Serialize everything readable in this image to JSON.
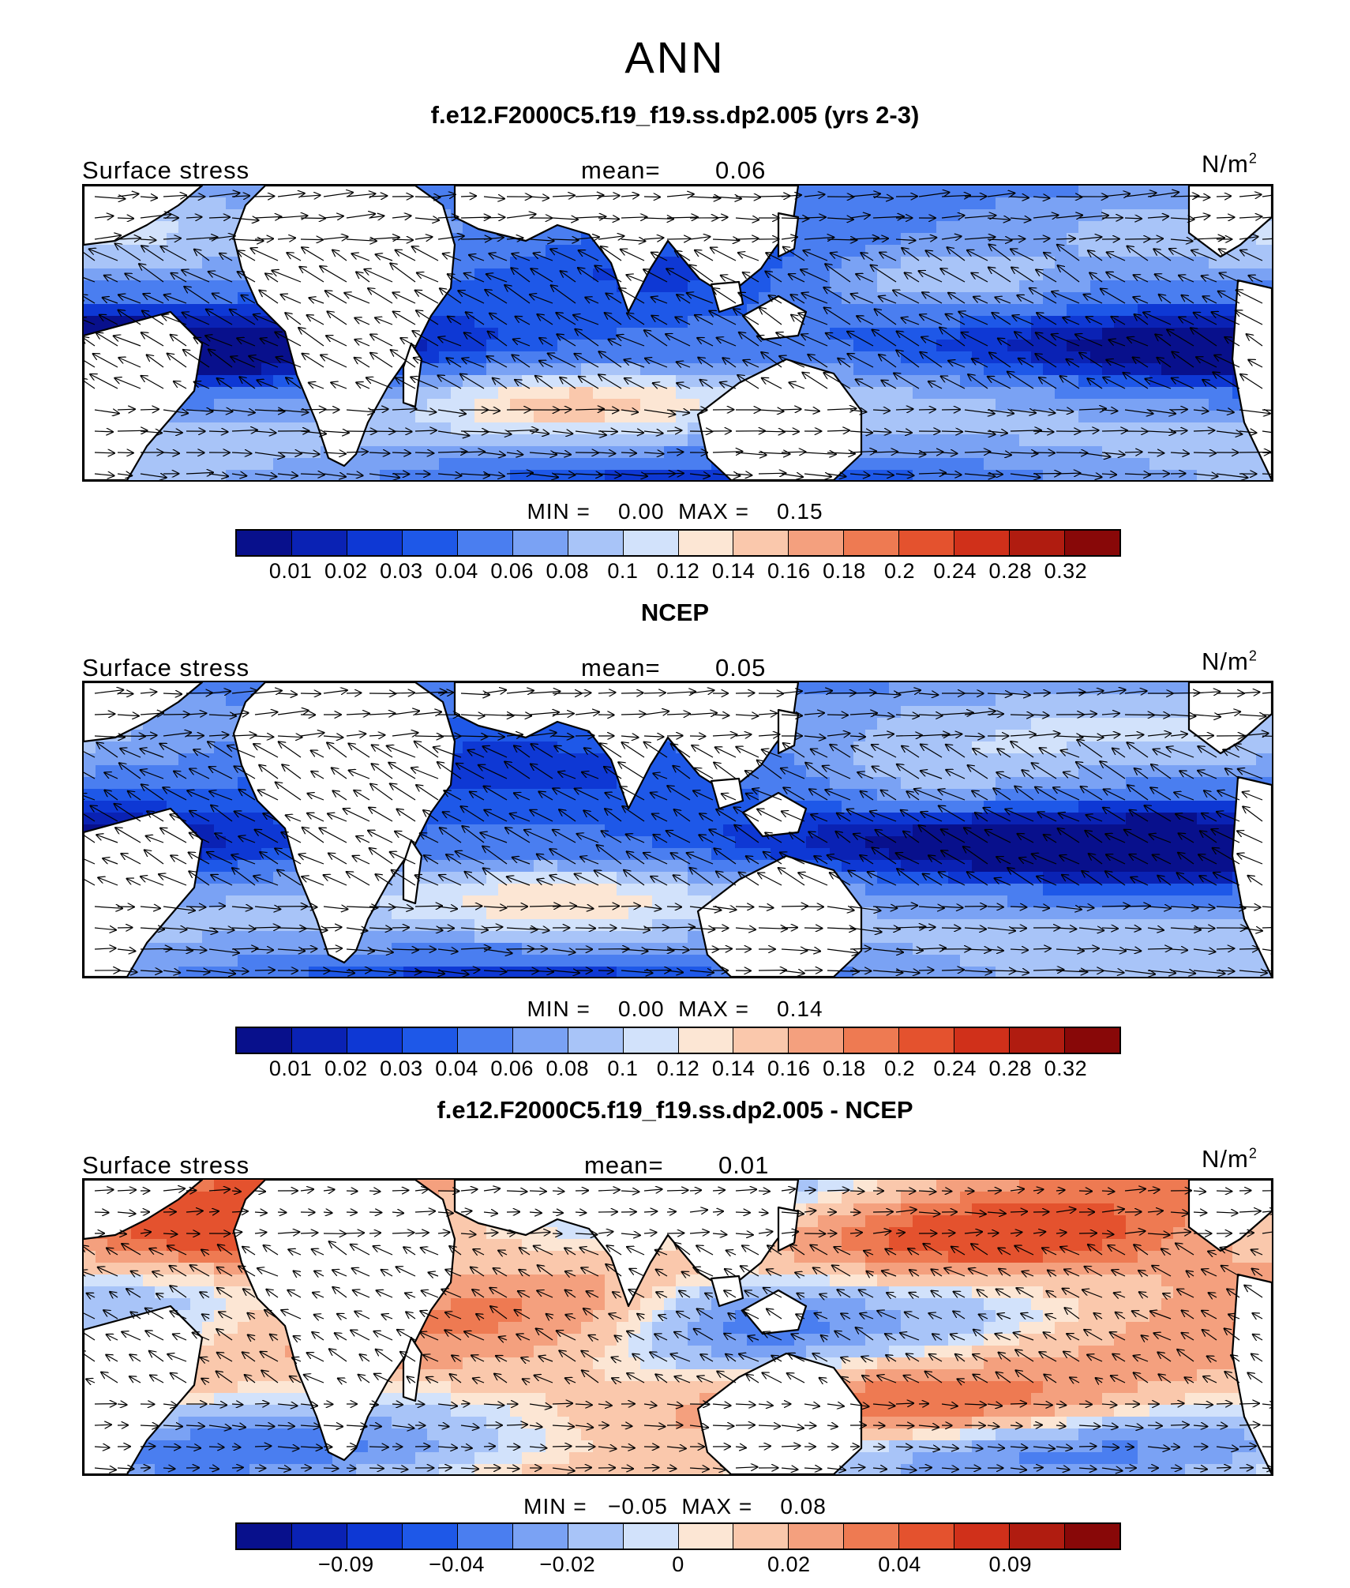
{
  "page_title": "ANN",
  "colors": {
    "scale": [
      "#08108c",
      "#0a22b4",
      "#0e38d4",
      "#1e58e8",
      "#4a7ef0",
      "#7aa2f4",
      "#a8c4f8",
      "#d2e2fb",
      "#fce6d4",
      "#fac8ac",
      "#f4a07e",
      "#ee7a52",
      "#e4522e",
      "#d0301a",
      "#b01c10",
      "#880808"
    ]
  },
  "panels": [
    {
      "title": "f.e12.F2000C5.f19_f19.ss.dp2.005 (yrs 2-3)",
      "left_label": "Surface stress",
      "mean_label": "mean=",
      "mean_value": "0.06",
      "units": "N/m",
      "units_sup": "2",
      "min_label": "MIN =",
      "min_value": "0.00",
      "max_label": "MAX =",
      "max_value": "0.15",
      "tick_labels": [
        "0.01",
        "0.02",
        "0.03",
        "0.04",
        "0.06",
        "0.08",
        "0.1",
        "0.12",
        "0.14",
        "0.16",
        "0.18",
        "0.2",
        "0.24",
        "0.28",
        "0.32"
      ],
      "mode": "mag"
    },
    {
      "title": "NCEP",
      "left_label": "Surface stress",
      "mean_label": "mean=",
      "mean_value": "0.05",
      "units": "N/m",
      "units_sup": "2",
      "min_label": "MIN =",
      "min_value": "0.00",
      "max_label": "MAX =",
      "max_value": "0.14",
      "tick_labels": [
        "0.01",
        "0.02",
        "0.03",
        "0.04",
        "0.06",
        "0.08",
        "0.1",
        "0.12",
        "0.14",
        "0.16",
        "0.18",
        "0.2",
        "0.24",
        "0.28",
        "0.32"
      ],
      "mode": "mag"
    },
    {
      "title": "f.e12.F2000C5.f19_f19.ss.dp2.005 - NCEP",
      "left_label": "Surface stress",
      "mean_label": "mean=",
      "mean_value": "0.01",
      "units": "N/m",
      "units_sup": "2",
      "min_label": "MIN =",
      "min_value": "−0.05",
      "max_label": "MAX =",
      "max_value": "0.08",
      "tick_labels": [
        "−0.09",
        "−0.04",
        "−0.02",
        "0",
        "0.02",
        "0.04",
        "0.09"
      ],
      "tick_positions": [
        2,
        4,
        6,
        8,
        10,
        12,
        14
      ],
      "mode": "diff"
    }
  ]
}
